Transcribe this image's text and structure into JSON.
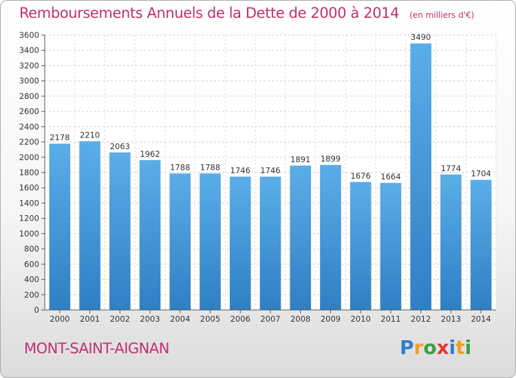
{
  "chart_data": {
    "type": "bar",
    "title": "Remboursements Annuels de la Dette de 2000 à 2014",
    "unit": "(en milliers d'€)",
    "categories": [
      "2000",
      "2001",
      "2002",
      "2003",
      "2004",
      "2005",
      "2006",
      "2007",
      "2008",
      "2009",
      "2010",
      "2011",
      "2012",
      "2013",
      "2014"
    ],
    "values": [
      2178,
      2210,
      2063,
      1962,
      1788,
      1788,
      1746,
      1746,
      1891,
      1899,
      1676,
      1664,
      3490,
      1774,
      1704
    ],
    "ylim": [
      0,
      3600
    ],
    "yticks": [
      0,
      200,
      400,
      600,
      800,
      1000,
      1200,
      1400,
      1600,
      1800,
      2000,
      2200,
      2400,
      2600,
      2800,
      3000,
      3200,
      3400,
      3600
    ],
    "grid": true,
    "xlabel": "",
    "ylabel": "",
    "bar_color": "#4a9fe0"
  },
  "footer": {
    "commune": "MONT-SAINT-AIGNAN",
    "logo_text": "Proxiti"
  }
}
